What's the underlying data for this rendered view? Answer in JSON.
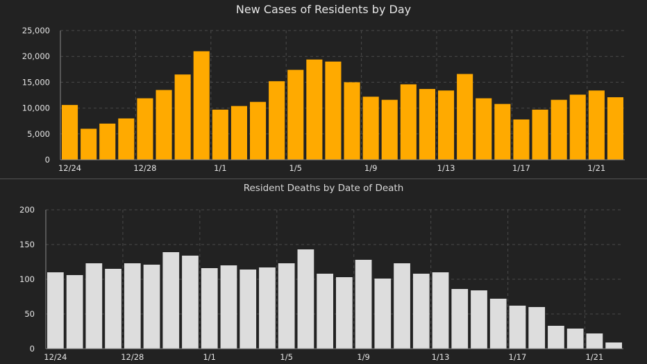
{
  "chart_data": [
    {
      "type": "bar",
      "title": "New Cases of Residents by Day",
      "xlabel": "",
      "ylabel": "",
      "ylim": [
        0,
        25000
      ],
      "yticks": [
        "0",
        "5,000",
        "10,000",
        "15,000",
        "20,000",
        "25,000"
      ],
      "tick_values": [
        0,
        5000,
        10000,
        15000,
        20000,
        25000
      ],
      "x_tick_labels": [
        {
          "index": 0,
          "label": "12/24"
        },
        {
          "index": 4,
          "label": "12/28"
        },
        {
          "index": 8,
          "label": "1/1"
        },
        {
          "index": 12,
          "label": "1/5"
        },
        {
          "index": 16,
          "label": "1/9"
        },
        {
          "index": 20,
          "label": "1/13"
        },
        {
          "index": 24,
          "label": "1/17"
        },
        {
          "index": 28,
          "label": "1/21"
        }
      ],
      "values": [
        10600,
        6000,
        7000,
        8000,
        11900,
        13500,
        16500,
        21000,
        9700,
        10400,
        11200,
        15200,
        17400,
        19400,
        19000,
        15000,
        12200,
        11600,
        14600,
        13700,
        13400,
        16600,
        11900,
        10800,
        7800,
        9700,
        11600,
        12600,
        13400,
        12100
      ],
      "bar_color": "#FFAA00",
      "grid": true
    },
    {
      "type": "bar",
      "title": "Resident Deaths by Date of Death",
      "xlabel": "",
      "ylabel": "",
      "ylim": [
        0,
        200
      ],
      "yticks": [
        "0",
        "50",
        "100",
        "150",
        "200"
      ],
      "tick_values": [
        0,
        50,
        100,
        150,
        200
      ],
      "x_tick_labels": [
        {
          "index": 0,
          "label": "12/24"
        },
        {
          "index": 4,
          "label": "12/28"
        },
        {
          "index": 8,
          "label": "1/1"
        },
        {
          "index": 12,
          "label": "1/5"
        },
        {
          "index": 16,
          "label": "1/9"
        },
        {
          "index": 20,
          "label": "1/13"
        },
        {
          "index": 24,
          "label": "1/17"
        },
        {
          "index": 28,
          "label": "1/21"
        }
      ],
      "values": [
        110,
        106,
        123,
        115,
        123,
        121,
        139,
        134,
        116,
        120,
        114,
        117,
        123,
        143,
        108,
        103,
        128,
        101,
        123,
        108,
        110,
        86,
        84,
        72,
        62,
        60,
        33,
        29,
        22,
        9
      ],
      "bar_color": "#DDDDDD",
      "grid": true
    }
  ],
  "colors": {
    "background": "#222222",
    "grid": "#4a4a4a",
    "axis": "#8a8a8a",
    "text": "#e6e6e6"
  }
}
